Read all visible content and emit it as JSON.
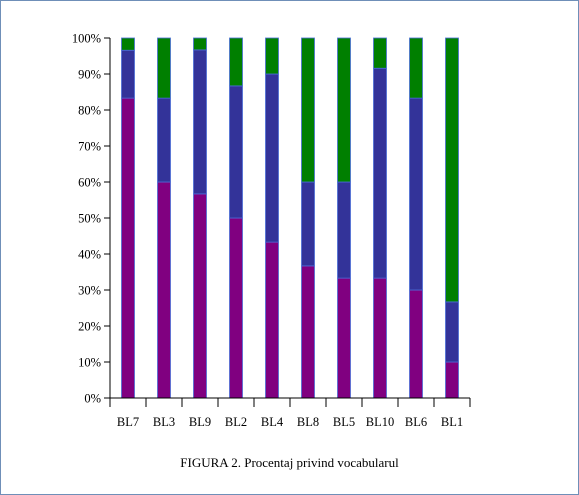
{
  "caption": "FIGURA 2. Procentaj privind vocabularul",
  "chart_data": {
    "type": "bar",
    "stacked": true,
    "percent_stacked": true,
    "title": "",
    "xlabel": "",
    "ylabel": "",
    "ylim": [
      0,
      100
    ],
    "yticks": [
      0,
      10,
      20,
      30,
      40,
      50,
      60,
      70,
      80,
      90,
      100
    ],
    "ytick_suffix": "%",
    "grid": false,
    "legend": "none",
    "categories": [
      "BL7",
      "BL3",
      "BL9",
      "BL2",
      "BL4",
      "BL8",
      "BL5",
      "BL10",
      "BL6",
      "BL1"
    ],
    "series": [
      {
        "color": "#800080",
        "values": [
          83.3,
          60,
          56.7,
          50,
          43.3,
          36.7,
          33.3,
          33.3,
          30,
          10
        ]
      },
      {
        "color": "#333399",
        "values": [
          13.3,
          23.3,
          40,
          36.7,
          46.7,
          23.3,
          26.7,
          58.3,
          53.3,
          16.7
        ]
      },
      {
        "color": "#007f00",
        "values": [
          3.4,
          16.7,
          3.3,
          13.3,
          10,
          40,
          40,
          8.4,
          16.7,
          73.3
        ]
      }
    ]
  }
}
